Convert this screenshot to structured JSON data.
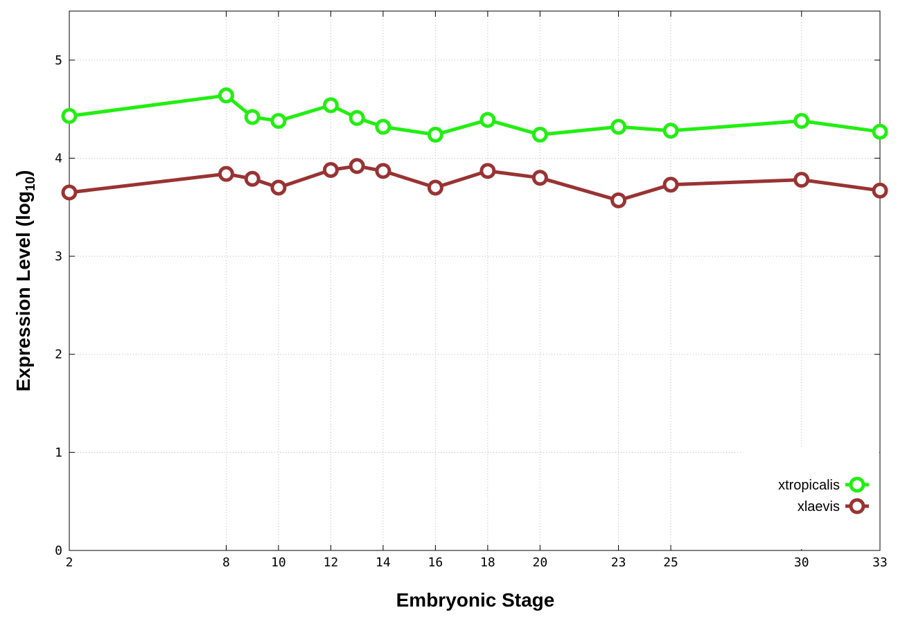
{
  "chart_data": {
    "type": "line",
    "title": "",
    "xlabel": "Embryonic Stage",
    "ylabel_main": "Expression Level (log",
    "ylabel_sub": "10",
    "ylabel_close": ")",
    "x": [
      2,
      8,
      9,
      10,
      12,
      13,
      14,
      16,
      18,
      20,
      23,
      25,
      30,
      33
    ],
    "xticks": [
      2,
      8,
      10,
      12,
      14,
      16,
      18,
      20,
      23,
      25,
      30,
      33
    ],
    "xlim": [
      2,
      33
    ],
    "yticks": [
      0,
      1,
      2,
      3,
      4,
      5
    ],
    "ylim": [
      0,
      5.5
    ],
    "grid": true,
    "legend_position": "bottom-right",
    "series": [
      {
        "name": "xtropicalis",
        "color": "#22ee11",
        "values": [
          4.43,
          4.64,
          4.42,
          4.38,
          4.54,
          4.41,
          4.32,
          4.24,
          4.39,
          4.24,
          4.32,
          4.28,
          4.38,
          4.27
        ]
      },
      {
        "name": "xlaevis",
        "color": "#993333",
        "values": [
          3.65,
          3.84,
          3.79,
          3.7,
          3.88,
          3.92,
          3.87,
          3.7,
          3.87,
          3.8,
          3.57,
          3.73,
          3.78,
          3.67
        ]
      }
    ]
  }
}
